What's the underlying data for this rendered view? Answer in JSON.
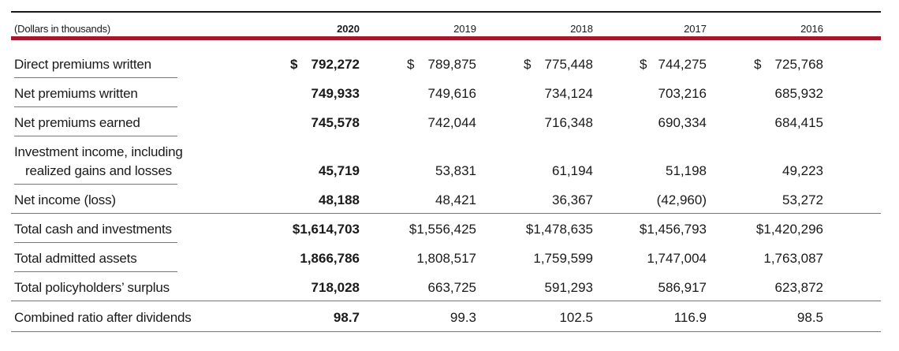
{
  "header": {
    "label": "(Dollars in thousands)",
    "years": [
      "2020",
      "2019",
      "2018",
      "2017",
      "2016"
    ]
  },
  "rows": [
    {
      "label": "Direct premiums written",
      "dollar": true,
      "values": [
        "792,272",
        "789,875",
        "775,448",
        "744,275",
        "725,768"
      ]
    },
    {
      "label": "Net premiums written",
      "values": [
        "749,933",
        "749,616",
        "734,124",
        "703,216",
        "685,932"
      ]
    },
    {
      "label": "Net premiums earned",
      "values": [
        "745,578",
        "742,044",
        "716,348",
        "690,334",
        "684,415"
      ]
    },
    {
      "label_line1": "Investment income, including",
      "label_line2": "realized gains and losses",
      "values": [
        "45,719",
        "53,831",
        "61,194",
        "51,198",
        "49,223"
      ]
    },
    {
      "label": "Net income (loss)",
      "values": [
        "48,188",
        "48,421",
        "36,367",
        "(42,960)",
        "53,272"
      ]
    },
    {
      "label": "Total cash and investments",
      "values": [
        "$1,614,703",
        "$1,556,425",
        "$1,478,635",
        "$1,456,793",
        "$1,420,296"
      ]
    },
    {
      "label": "Total admitted assets",
      "values": [
        "1,866,786",
        "1,808,517",
        "1,759,599",
        "1,747,004",
        "1,763,087"
      ]
    },
    {
      "label": "Total policyholders’ surplus",
      "values": [
        "718,028",
        "663,725",
        "591,293",
        "586,917",
        "623,872"
      ]
    },
    {
      "label": "Combined ratio after dividends",
      "values": [
        "98.7",
        "99.3",
        "102.5",
        "116.9",
        "98.5"
      ]
    }
  ],
  "dollar_sign": "$"
}
